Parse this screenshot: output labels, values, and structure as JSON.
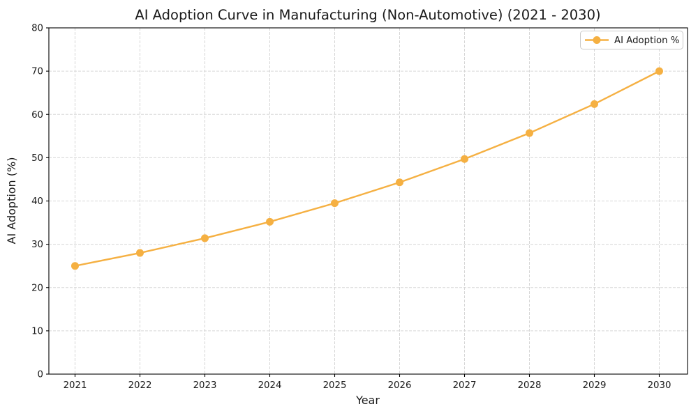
{
  "chart_data": {
    "type": "line",
    "title": "AI Adoption Curve in Manufacturing (Non-Automotive) (2021 - 2030)",
    "xlabel": "Year",
    "ylabel": "AI Adoption (%)",
    "x": [
      2021,
      2022,
      2023,
      2024,
      2025,
      2026,
      2027,
      2028,
      2029,
      2030
    ],
    "series": [
      {
        "name": "AI Adoption %",
        "color": "#f5b042",
        "marker": "circle",
        "values": [
          25.0,
          28.0,
          31.4,
          35.2,
          39.5,
          44.3,
          49.7,
          55.7,
          62.4,
          70.0
        ]
      }
    ],
    "ylim": [
      0,
      80
    ],
    "yticks": [
      0,
      10,
      20,
      30,
      40,
      50,
      60,
      70,
      80
    ],
    "grid": true,
    "grid_style": "dashed",
    "legend": {
      "position": "upper right",
      "label": "AI Adoption %"
    }
  },
  "colors": {
    "series": "#f5b042",
    "grid": "#d6d6d6",
    "axis": "#000000",
    "text": "#1a1a1a",
    "legend_border": "#c9c9c9",
    "background": "#ffffff"
  }
}
